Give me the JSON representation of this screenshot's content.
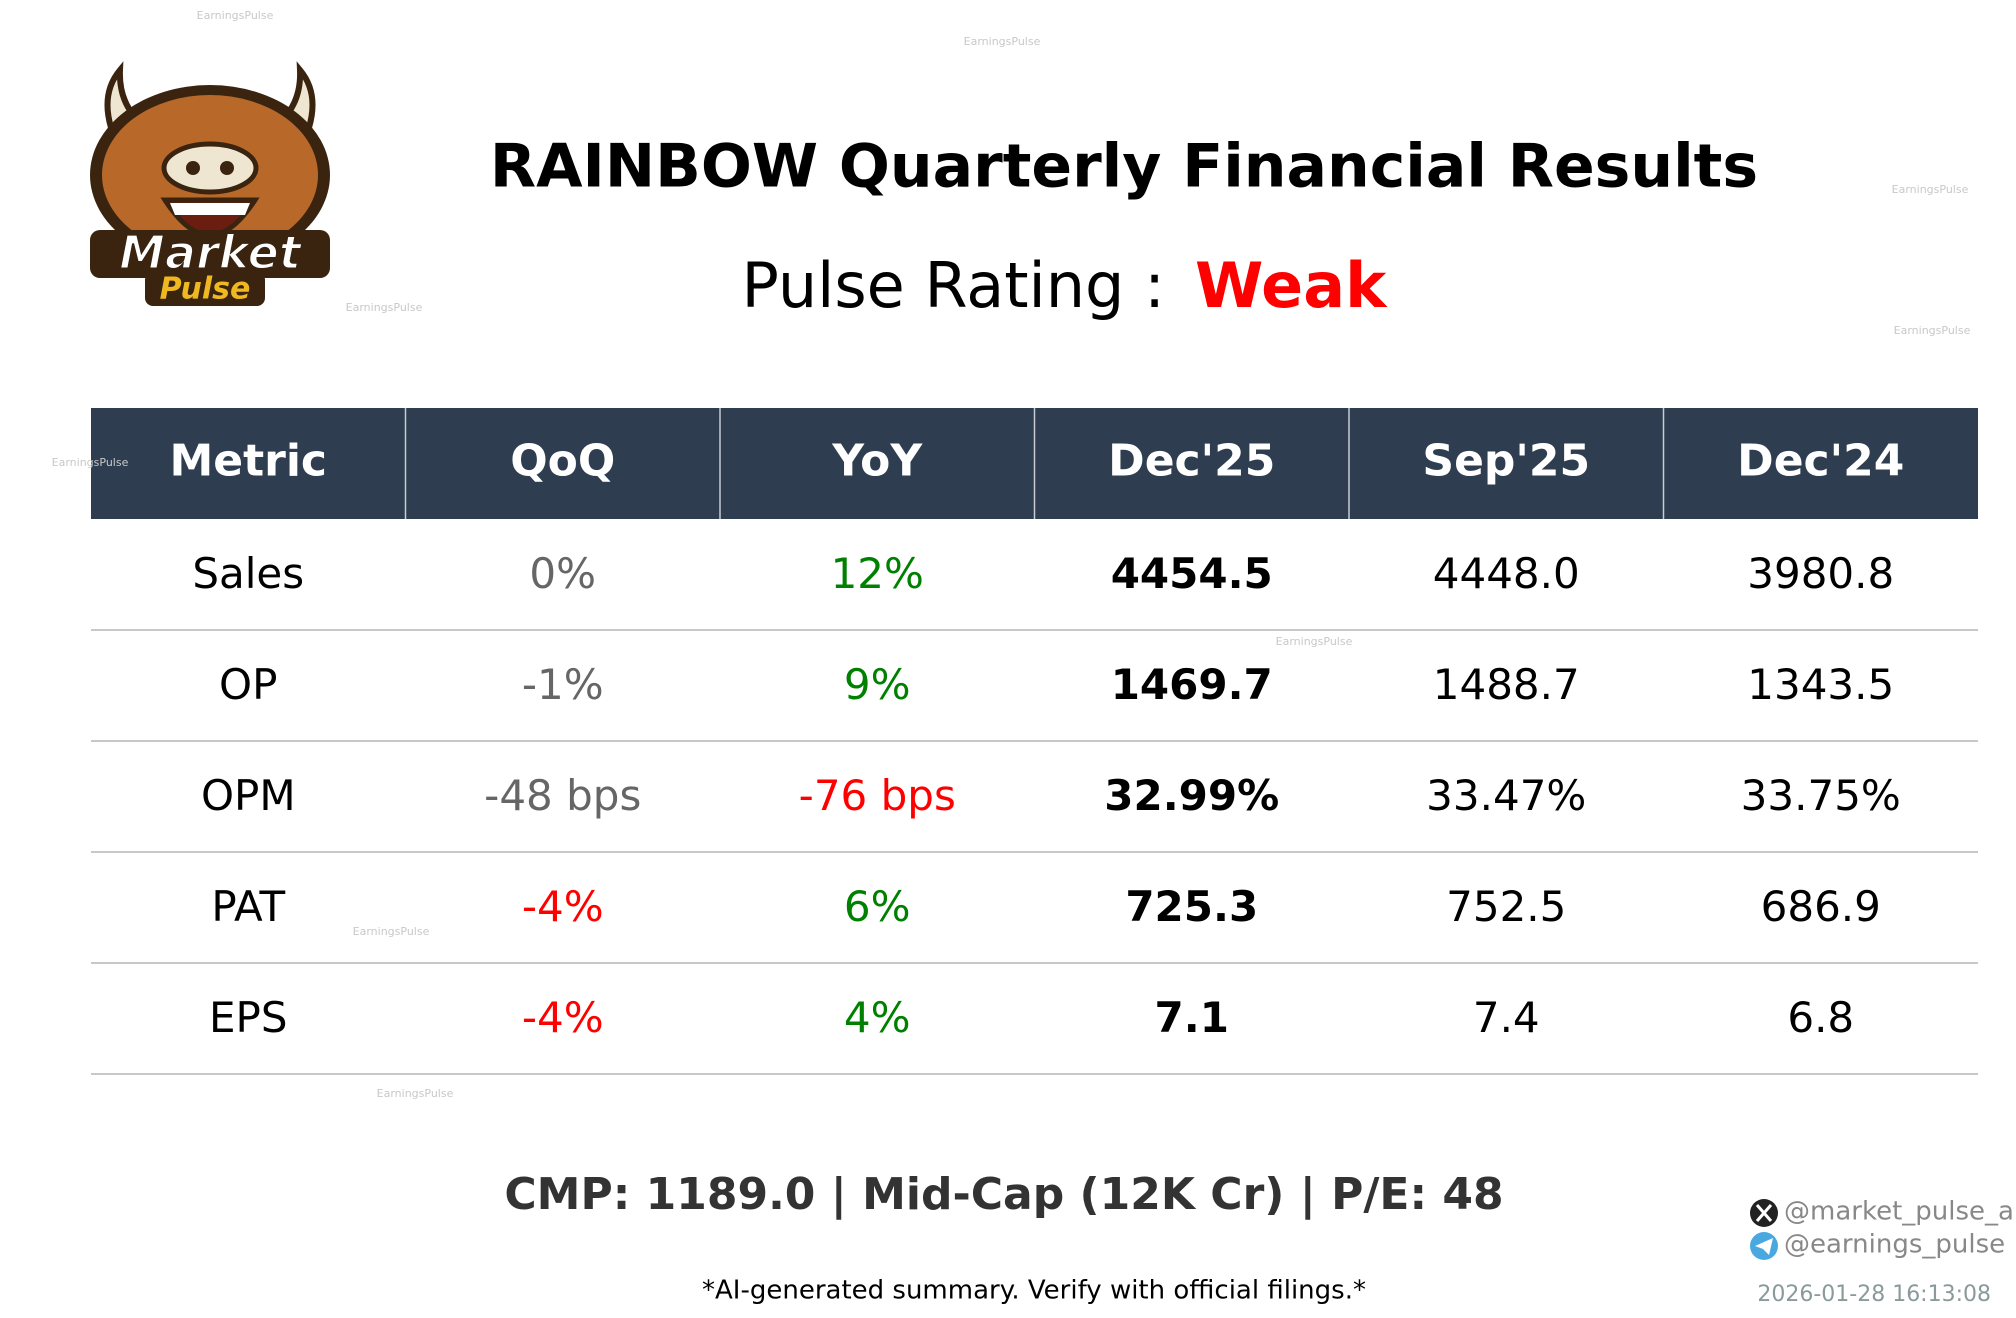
{
  "header": {
    "title": "RAINBOW Quarterly Financial Results",
    "rating_label": "Pulse Rating :",
    "rating": "Weak",
    "rating_color": "#ff0000"
  },
  "logo": {
    "line1": "Market",
    "line2": "Pulse"
  },
  "table": {
    "columns": [
      "Metric",
      "QoQ",
      "YoY",
      "Dec'25",
      "Sep'25",
      "Dec'24"
    ],
    "rows": [
      [
        "Sales",
        "0%",
        "12%",
        "4454.5",
        "4448.0",
        "3980.8"
      ],
      [
        "OP",
        "-1%",
        "9%",
        "1469.7",
        "1488.7",
        "1343.5"
      ],
      [
        "OPM",
        "-48 bps",
        "-76 bps",
        "32.99%",
        "33.47%",
        "33.75%"
      ],
      [
        "PAT",
        "-4%",
        "6%",
        "725.3",
        "752.5",
        "686.9"
      ],
      [
        "EPS",
        "-4%",
        "4%",
        "7.1",
        "7.4",
        "6.8"
      ]
    ],
    "cell_colors": [
      [
        "#000000",
        "#666666",
        "#008000",
        "#000000",
        "#000000",
        "#000000"
      ],
      [
        "#000000",
        "#666666",
        "#008000",
        "#000000",
        "#000000",
        "#000000"
      ],
      [
        "#000000",
        "#666666",
        "#ff0000",
        "#000000",
        "#000000",
        "#000000"
      ],
      [
        "#000000",
        "#ff0000",
        "#008000",
        "#000000",
        "#000000",
        "#000000"
      ],
      [
        "#000000",
        "#ff0000",
        "#008000",
        "#000000",
        "#000000",
        "#000000"
      ]
    ],
    "header_color": "#2e3e50"
  },
  "footer": {
    "summary": "CMP: 1189.0 | Mid-Cap (12K Cr) | P/E: 48",
    "disclaimer": "*AI-generated summary. Verify with official filings.*",
    "twitter": "@market_pulse_ai",
    "telegram": "@earnings_pulse",
    "timestamp": "2026-01-28 16:13:08"
  },
  "watermark": "EarningsPulse"
}
